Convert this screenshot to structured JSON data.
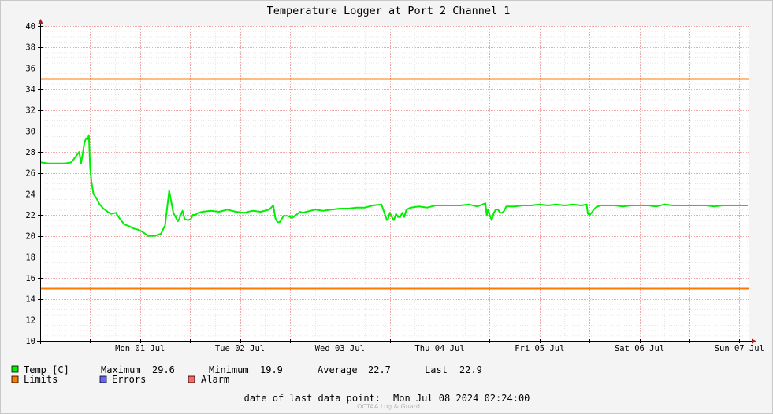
{
  "chart_data": {
    "type": "line",
    "title": "Temperature Logger at Port 2 Channel 1",
    "ylim": [
      10,
      40
    ],
    "y_ticks": [
      10,
      12,
      14,
      16,
      18,
      20,
      22,
      24,
      26,
      28,
      30,
      32,
      34,
      36,
      38,
      40
    ],
    "x_ticks": [
      "Mon 01 Jul",
      "Tue 02 Jul",
      "Wed 03 Jul",
      "Thu 04 Jul",
      "Fri 05 Jul",
      "Sat 06 Jul",
      "Sun 07 Jul"
    ],
    "x_unit": "hours",
    "xlim": [
      -12,
      158.4
    ],
    "grid": true,
    "limits": {
      "name": "Limits",
      "upper": 35,
      "lower": 15,
      "color": "#ff7a00"
    },
    "series": [
      {
        "name": "Temp [C]",
        "color": "#00ee00",
        "x": [
          -12,
          -10,
          -8,
          -6,
          -4.5,
          -3,
          -2.6,
          -2.2,
          -1.8,
          -1.4,
          -1,
          -0.6,
          -0.3,
          0,
          0.3,
          0.8,
          1.5,
          2.3,
          3.2,
          4.2,
          5,
          6.2,
          7,
          8.2,
          9.5,
          10.5,
          11.5,
          12.5,
          14,
          15.5,
          17,
          18,
          19,
          20,
          20.8,
          21.1,
          21.4,
          21.8,
          22.2,
          22.7,
          23.5,
          24.2,
          24.7,
          25.3,
          26,
          27,
          29,
          31,
          33,
          35,
          37,
          39,
          41,
          43,
          44,
          44.5,
          45,
          45.5,
          46.5,
          47.5,
          48.5,
          49.5,
          50.5,
          51,
          52,
          54,
          56,
          58,
          60,
          62,
          64,
          66,
          68,
          70,
          71.3,
          71.6,
          72,
          72.5,
          73,
          73.5,
          74,
          74.5,
          75,
          75.5,
          76,
          77,
          79,
          81,
          83,
          85,
          87,
          89,
          91,
          93,
          95,
          95.3,
          95.6,
          96,
          96.5,
          97,
          97.5,
          98,
          98.5,
          99,
          99.5,
          100,
          102,
          104,
          106,
          108,
          110,
          112,
          114,
          116,
          118,
          119.3,
          119.6,
          120,
          120.5,
          121,
          121.5,
          122,
          122.5,
          123,
          124,
          126,
          128,
          130,
          132,
          134,
          136,
          138,
          140,
          142,
          144,
          146,
          148,
          150,
          152,
          154,
          156,
          158
        ],
        "values": [
          27.0,
          26.9,
          26.9,
          26.9,
          27.0,
          27.8,
          28.0,
          26.9,
          27.8,
          28.8,
          29.3,
          29.2,
          29.6,
          26.5,
          25.2,
          24.0,
          23.6,
          23.0,
          22.6,
          22.3,
          22.1,
          22.2,
          21.7,
          21.1,
          20.9,
          20.7,
          20.6,
          20.4,
          20.0,
          20.0,
          20.2,
          21.0,
          24.3,
          22.2,
          21.6,
          21.4,
          21.6,
          22.0,
          22.4,
          21.6,
          21.5,
          21.6,
          22.0,
          22.0,
          22.2,
          22.3,
          22.4,
          22.3,
          22.5,
          22.3,
          22.2,
          22.4,
          22.3,
          22.5,
          22.9,
          21.7,
          21.3,
          21.3,
          21.9,
          21.9,
          21.7,
          22.0,
          22.3,
          22.2,
          22.3,
          22.5,
          22.4,
          22.5,
          22.6,
          22.6,
          22.7,
          22.7,
          22.9,
          23.0,
          21.5,
          21.6,
          22.2,
          21.8,
          21.5,
          22.1,
          21.8,
          21.8,
          22.2,
          21.8,
          22.5,
          22.7,
          22.8,
          22.7,
          22.9,
          22.9,
          22.9,
          22.9,
          23.0,
          22.8,
          23.1,
          21.9,
          22.5,
          22.0,
          21.5,
          22.2,
          22.5,
          22.5,
          22.2,
          22.2,
          22.4,
          22.8,
          22.8,
          22.9,
          22.9,
          23.0,
          22.9,
          23.0,
          22.9,
          23.0,
          22.9,
          23.0,
          22.1,
          22.0,
          22.2,
          22.5,
          22.7,
          22.8,
          22.9,
          22.9,
          22.9,
          22.9,
          22.8,
          22.9,
          22.9,
          22.9,
          22.8,
          23.0,
          22.9,
          22.9,
          22.9,
          22.9,
          22.9,
          22.8,
          22.9,
          22.9,
          22.9,
          22.9
        ]
      }
    ]
  },
  "legend": {
    "temp_label": "Temp [C]",
    "limits_label": "Limits",
    "errors_label": "Errors",
    "alarm_label": "Alarm",
    "errors_color": "#6666ff",
    "alarm_color": "#ff6666"
  },
  "stats": {
    "max_label": "Maximum",
    "max_value": "29.6",
    "min_label": "Minimum",
    "min_value": "19.9",
    "avg_label": "Average",
    "avg_value": "22.7",
    "last_label": "Last",
    "last_value": "22.9"
  },
  "footer": {
    "last_point_label": "date of last data point:",
    "last_point_value": "Mon Jul 08 2024 02:24:00",
    "watermark": "OCTAA Log & Guard"
  }
}
